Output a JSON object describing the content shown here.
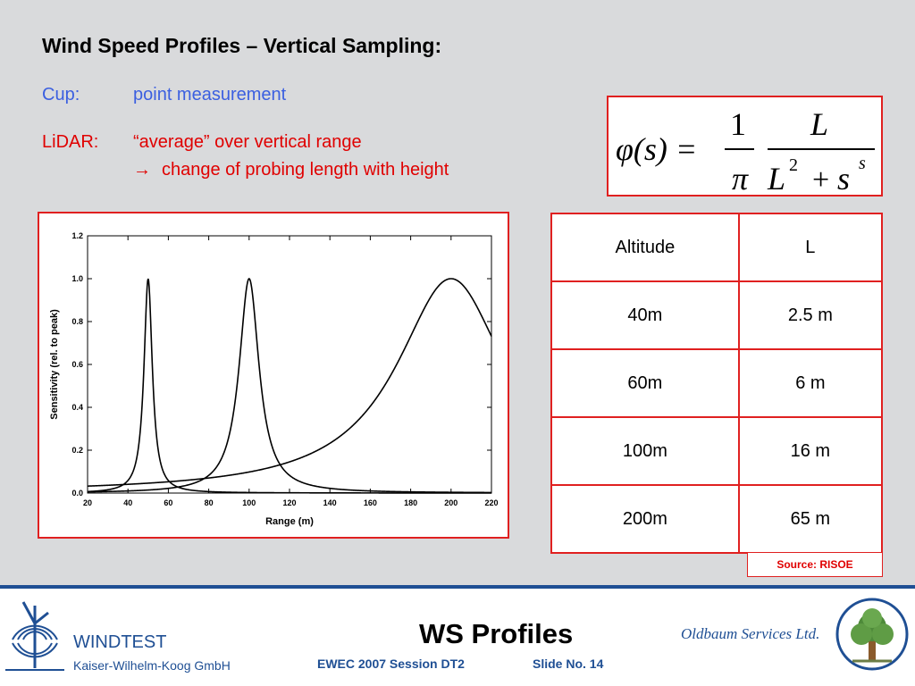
{
  "header": {
    "title": "Wind Speed Profiles –  Vertical Sampling:"
  },
  "cup": {
    "label": "Cup:",
    "text": "point measurement"
  },
  "lidar": {
    "label": "LiDAR:",
    "text": "“average” over vertical range",
    "arrow": "→",
    "note": "change of probing length with height"
  },
  "formula": {
    "lhs": "φ(s) =",
    "numerator_left": "1",
    "denominator_left": "π",
    "numerator_right": "L",
    "denominator_right_L": "L",
    "denominator_right_exp": "2",
    "denominator_right_plus": "+",
    "denominator_right_s": "s",
    "denominator_right_sexp": "s"
  },
  "chart_data": {
    "type": "line",
    "xlabel": "Range (m)",
    "ylabel": "Sensitivity (rel. to peak)",
    "xlim": [
      20,
      220
    ],
    "ylim": [
      0,
      1.2
    ],
    "x_ticks": [
      "20",
      "40",
      "60",
      "80",
      "100",
      "120",
      "140",
      "160",
      "180",
      "200",
      "220"
    ],
    "y_ticks": [
      "0.0",
      "0.2",
      "0.4",
      "0.6",
      "0.8",
      "1.0",
      "1.2"
    ],
    "grid": false,
    "series": [
      {
        "type": "lorentzian",
        "center": 50,
        "halfwidth": 2.5
      },
      {
        "type": "lorentzian",
        "center": 100,
        "halfwidth": 6
      },
      {
        "type": "lorentzian",
        "center": 200,
        "halfwidth": 33
      }
    ]
  },
  "table": {
    "headers": [
      "Altitude",
      "L"
    ],
    "rows": [
      [
        "40m",
        "2.5 m"
      ],
      [
        "60m",
        "6 m"
      ],
      [
        "100m",
        "16 m"
      ],
      [
        "200m",
        "65 m"
      ]
    ]
  },
  "source": {
    "label": "Source: RISOE"
  },
  "footer": {
    "company": "WINDTEST",
    "company_sub": "Kaiser-Wilhelm-Koog GmbH",
    "title": "WS Profiles",
    "session": "EWEC 2007 Session DT2",
    "slide": "Slide No. 14",
    "partner": "Oldbaum Services Ltd.",
    "accent": "#1f4f94",
    "highlight": "#e02020"
  }
}
